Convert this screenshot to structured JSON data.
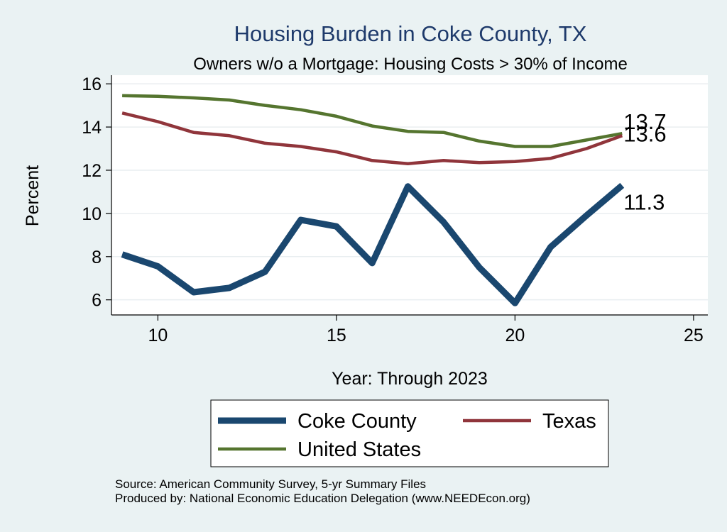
{
  "chart_data": {
    "type": "line",
    "title": "Housing Burden in Coke County, TX",
    "subtitle": "Owners w/o a Mortgage: Housing Costs > 30% of Income",
    "xlabel": "Year: Through 2023",
    "ylabel": "Percent",
    "xlim": [
      8.7,
      25.4
    ],
    "ylim": [
      5.3,
      16.4
    ],
    "xticks": [
      10,
      15,
      20,
      25
    ],
    "yticks": [
      6,
      8,
      10,
      12,
      14,
      16
    ],
    "grid": true,
    "legend_position": "bottom",
    "x": [
      9,
      10,
      11,
      12,
      13,
      14,
      15,
      16,
      17,
      18,
      19,
      20,
      21,
      22,
      23
    ],
    "series": [
      {
        "name": "Coke County",
        "color": "#1a476f",
        "values": [
          8.1,
          7.55,
          6.35,
          6.55,
          7.3,
          9.7,
          9.4,
          7.7,
          11.25,
          9.6,
          7.5,
          5.85,
          8.45,
          9.9,
          11.3
        ],
        "end_label": "11.3"
      },
      {
        "name": "Texas",
        "color": "#90353b",
        "values": [
          14.65,
          14.25,
          13.75,
          13.6,
          13.25,
          13.1,
          12.85,
          12.45,
          12.3,
          12.45,
          12.35,
          12.4,
          12.55,
          13.0,
          13.6
        ],
        "end_label": "13.6"
      },
      {
        "name": "United States",
        "color": "#55752f",
        "values": [
          15.45,
          15.42,
          15.35,
          15.25,
          15.0,
          14.8,
          14.5,
          14.05,
          13.8,
          13.75,
          13.35,
          13.1,
          13.1,
          13.4,
          13.7
        ],
        "end_label": "13.7"
      }
    ],
    "notes": [
      "Source: American Community Survey, 5-yr Summary Files",
      "Produced by: National Economic Education Delegation (www.NEEDEcon.org)"
    ]
  }
}
